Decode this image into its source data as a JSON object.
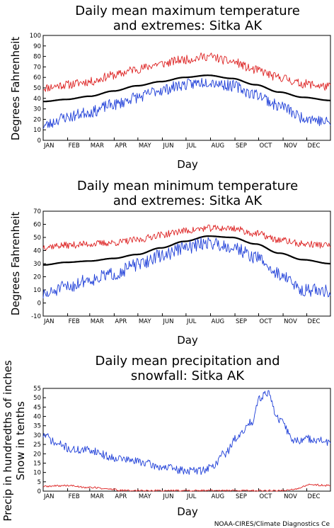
{
  "credit": "NOAA-CIRES/Climate Diagnostics Ce",
  "colors": {
    "max_series": "#dd2222",
    "min_series": "#1f3fd8",
    "mean_series": "#000000"
  },
  "chart_data": [
    {
      "type": "line",
      "title_line1": "Daily mean maximum temperature",
      "title_line2": "and extremes: Sitka AK",
      "xlabel": "Day",
      "ylabel": "Degrees Fahrenheit",
      "ylim": [
        0,
        100
      ],
      "yticks": [
        0,
        10,
        20,
        30,
        40,
        50,
        60,
        70,
        80,
        90,
        100
      ],
      "months": [
        "JAN",
        "FEB",
        "MAR",
        "APR",
        "MAY",
        "JUN",
        "JUL",
        "AUG",
        "SEP",
        "OCT",
        "NOV",
        "DEC"
      ],
      "grid": false,
      "series": [
        {
          "name": "",
          "color": "#dd2222",
          "noise": 4.2,
          "seed": 11,
          "x": [
            1,
            30,
            60,
            90,
            120,
            150,
            180,
            210,
            240,
            270,
            300,
            330,
            365
          ],
          "values": [
            50,
            53,
            56,
            62,
            68,
            73,
            77,
            80,
            75,
            67,
            60,
            54,
            51
          ]
        },
        {
          "name": "",
          "color": "#000000",
          "noise": 0,
          "seed": 0,
          "x": [
            1,
            30,
            60,
            90,
            120,
            150,
            180,
            210,
            240,
            270,
            300,
            330,
            365
          ],
          "values": [
            37,
            39,
            42,
            47,
            52,
            56,
            60,
            62,
            59,
            53,
            46,
            41,
            38
          ]
        },
        {
          "name": "",
          "color": "#1f3fd8",
          "noise": 5.5,
          "seed": 23,
          "x": [
            1,
            30,
            60,
            90,
            120,
            150,
            180,
            210,
            240,
            270,
            300,
            330,
            365
          ],
          "values": [
            14,
            22,
            27,
            34,
            41,
            48,
            53,
            56,
            52,
            44,
            33,
            22,
            17
          ]
        }
      ]
    },
    {
      "type": "line",
      "title_line1": "Daily mean minimum temperature",
      "title_line2": "and extremes: Sitka AK",
      "xlabel": "Day",
      "ylabel": "Degrees Fahrenheit",
      "ylim": [
        -10,
        70
      ],
      "yticks": [
        -10,
        0,
        10,
        20,
        30,
        40,
        50,
        60,
        70
      ],
      "months": [
        "JAN",
        "FEB",
        "MAR",
        "APR",
        "MAY",
        "JUN",
        "JUL",
        "AUG",
        "SEP",
        "OCT",
        "NOV",
        "DEC"
      ],
      "grid": false,
      "series": [
        {
          "name": "",
          "color": "#dd2222",
          "noise": 2.6,
          "seed": 37,
          "x": [
            1,
            30,
            60,
            90,
            120,
            150,
            180,
            210,
            240,
            270,
            300,
            330,
            365
          ],
          "values": [
            43,
            44,
            45,
            46,
            48,
            52,
            55,
            57,
            57,
            53,
            48,
            45,
            44
          ]
        },
        {
          "name": "",
          "color": "#000000",
          "noise": 0,
          "seed": 0,
          "x": [
            1,
            30,
            60,
            90,
            120,
            150,
            180,
            210,
            240,
            270,
            300,
            330,
            365
          ],
          "values": [
            29,
            31,
            32,
            34,
            37,
            42,
            47,
            51,
            50,
            45,
            38,
            33,
            30
          ]
        },
        {
          "name": "",
          "color": "#1f3fd8",
          "noise": 5,
          "seed": 51,
          "x": [
            1,
            30,
            60,
            90,
            120,
            150,
            180,
            210,
            240,
            270,
            300,
            330,
            365
          ],
          "values": [
            6,
            12,
            18,
            22,
            29,
            36,
            42,
            46,
            43,
            35,
            22,
            10,
            9
          ]
        }
      ]
    },
    {
      "type": "line",
      "title_line1": "Daily mean precipitation and",
      "title_line2": "snowfall: Sitka AK",
      "xlabel": "Day",
      "ylabel": "Precip in hundredths of inches",
      "ylabel2": "Snow in tenths",
      "ylim": [
        0,
        55
      ],
      "yticks": [
        0,
        5,
        10,
        15,
        20,
        25,
        30,
        35,
        40,
        45,
        50,
        55
      ],
      "months": [
        "JAN",
        "FEB",
        "MAR",
        "APR",
        "MAY",
        "JUN",
        "JUL",
        "AUG",
        "SEP",
        "OCT",
        "NOV",
        "DEC"
      ],
      "grid": false,
      "series": [
        {
          "name": "",
          "color": "#1f3fd8",
          "noise": 2.2,
          "seed": 71,
          "x": [
            1,
            20,
            40,
            60,
            90,
            120,
            150,
            180,
            200,
            215,
            230,
            250,
            265,
            275,
            285,
            300,
            320,
            340,
            365
          ],
          "values": [
            30,
            25,
            22,
            22,
            18,
            16,
            13,
            11,
            11,
            13,
            20,
            30,
            37,
            50,
            53,
            38,
            27,
            28,
            26
          ]
        },
        {
          "name": "",
          "color": "#dd2222",
          "noise": 0.5,
          "seed": 89,
          "x": [
            1,
            30,
            60,
            90,
            100,
            300,
            320,
            340,
            365
          ],
          "values": [
            2.5,
            3,
            2,
            1,
            0.3,
            0.3,
            1,
            3.5,
            3
          ]
        }
      ]
    }
  ]
}
